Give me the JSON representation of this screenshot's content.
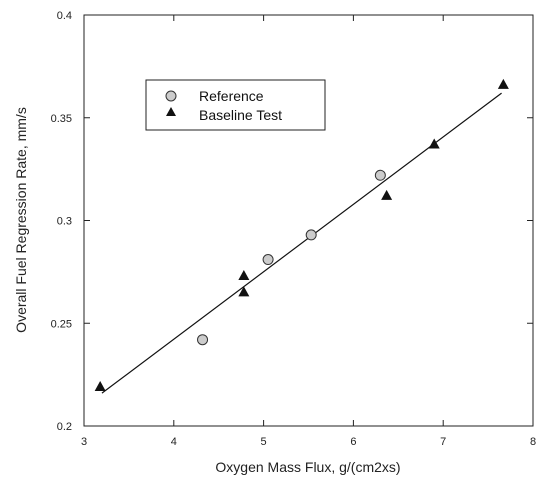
{
  "chart_data": {
    "type": "scatter",
    "xlabel": "Oxygen Mass Flux, g/(cm2xs)",
    "ylabel": "Overall Fuel Regression Rate, mm/s",
    "xlim": [
      3,
      8
    ],
    "ylim": [
      0.2,
      0.4
    ],
    "x_ticks": [
      3,
      4,
      5,
      6,
      7,
      8
    ],
    "y_ticks": [
      0.2,
      0.25,
      0.3,
      0.35,
      0.4
    ],
    "x_tick_labels": [
      "3",
      "4",
      "5",
      "6",
      "7",
      "8"
    ],
    "y_tick_labels": [
      "0.2",
      "0.25",
      "0.3",
      "0.35",
      "0.4"
    ],
    "grid": false,
    "legend_position": "top-left",
    "series": [
      {
        "name": "Reference",
        "marker": "circle",
        "color": "#cccccc",
        "points": [
          {
            "x": 4.32,
            "y": 0.242
          },
          {
            "x": 5.05,
            "y": 0.281
          },
          {
            "x": 5.53,
            "y": 0.293
          },
          {
            "x": 6.3,
            "y": 0.322
          }
        ]
      },
      {
        "name": "Baseline Test",
        "marker": "triangle",
        "color": "#111111",
        "points": [
          {
            "x": 3.18,
            "y": 0.219
          },
          {
            "x": 4.78,
            "y": 0.273
          },
          {
            "x": 4.78,
            "y": 0.265
          },
          {
            "x": 6.37,
            "y": 0.312
          },
          {
            "x": 6.9,
            "y": 0.337
          },
          {
            "x": 7.67,
            "y": 0.366
          }
        ]
      }
    ],
    "fit_line": {
      "x": [
        3.2,
        7.65
      ],
      "y": [
        0.216,
        0.362
      ]
    }
  }
}
